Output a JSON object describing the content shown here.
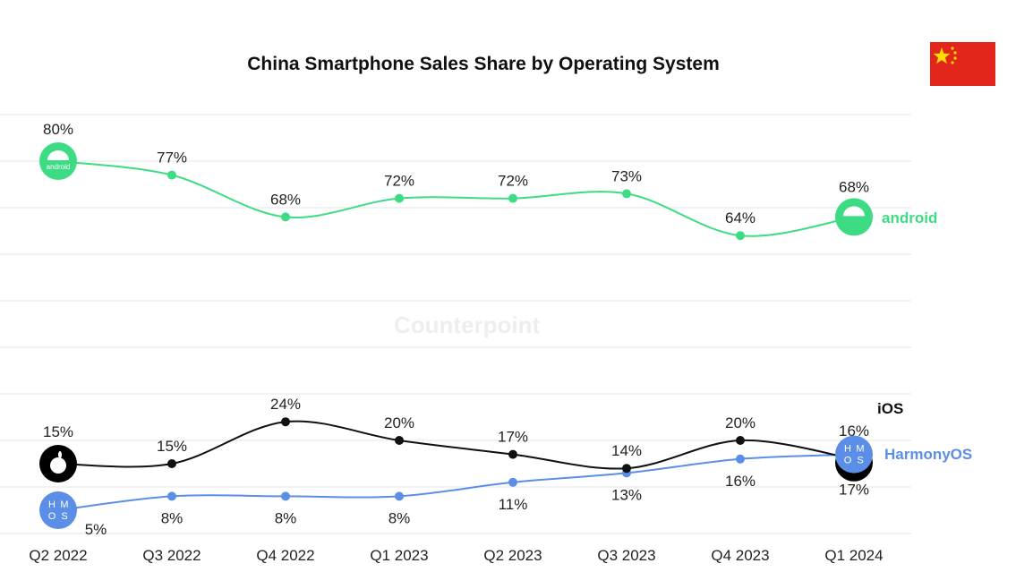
{
  "chart_data": {
    "type": "line",
    "title": "China Smartphone Sales Share by Operating System",
    "xlabel": "",
    "ylabel": "",
    "ylim": [
      0,
      90
    ],
    "grid": true,
    "categories": [
      "Q2 2022",
      "Q3 2022",
      "Q4 2022",
      "Q1 2023",
      "Q2 2023",
      "Q3 2023",
      "Q4 2023",
      "Q1 2024"
    ],
    "series": [
      {
        "name": "android",
        "color": "#3ddc84",
        "values": [
          80,
          77,
          68,
          72,
          72,
          73,
          64,
          68
        ],
        "labels": [
          "80%",
          "77%",
          "68%",
          "72%",
          "72%",
          "73%",
          "64%",
          "68%"
        ]
      },
      {
        "name": "iOS",
        "color": "#111111",
        "values": [
          15,
          15,
          24,
          20,
          17,
          14,
          20,
          16
        ],
        "labels": [
          "15%",
          "15%",
          "24%",
          "20%",
          "17%",
          "14%",
          "20%",
          "16%"
        ]
      },
      {
        "name": "HarmonyOS",
        "color": "#5b8ee6",
        "values": [
          5,
          8,
          8,
          8,
          11,
          13,
          16,
          17
        ],
        "labels": [
          "5%",
          "8%",
          "8%",
          "8%",
          "11%",
          "13%",
          "16%",
          "17%"
        ]
      }
    ],
    "legend": "inline-right",
    "icon_text": {
      "android": "android",
      "harmony": [
        "H",
        "M",
        "O",
        "S"
      ]
    },
    "watermark": "Counterpoint"
  }
}
